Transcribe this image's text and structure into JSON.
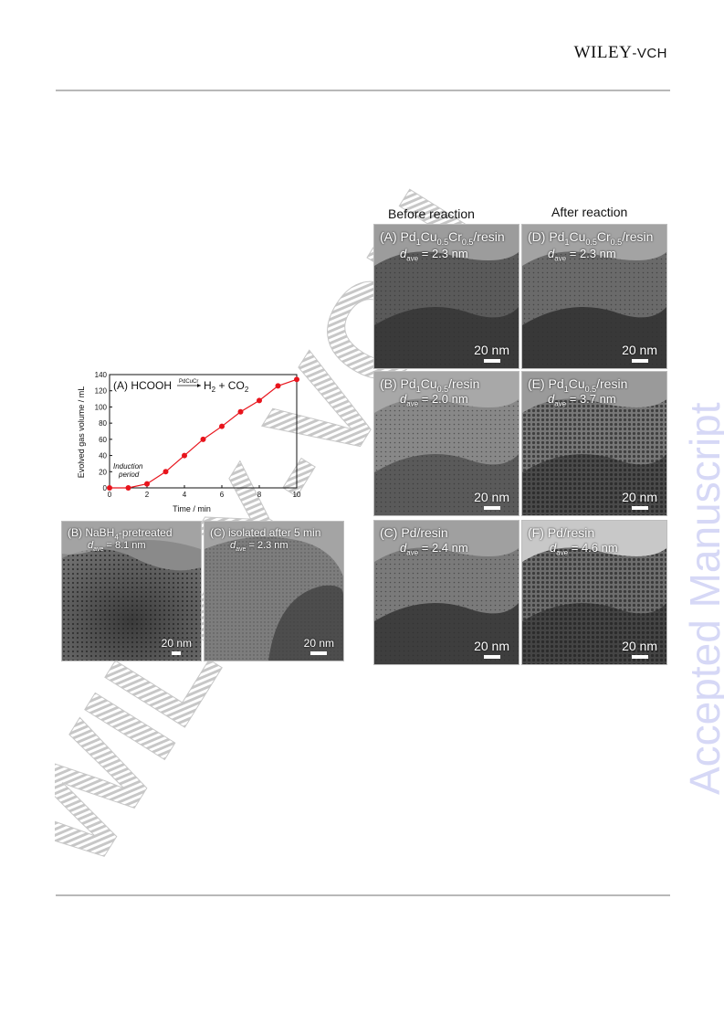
{
  "header": {
    "publisher_main": "WILEY",
    "publisher_suffix": "-VCH"
  },
  "watermark": {
    "side_text": "Accepted Manuscript",
    "diag_text": "WILEY-VCH",
    "color": "#d6d8f6"
  },
  "figure_left": {
    "chart_data": {
      "type": "line",
      "title": "(A) HCOOH",
      "reaction_catalyst": "PdCuCr",
      "reaction_products": [
        "H",
        "2",
        " + CO",
        "2"
      ],
      "xlabel": "Time / min",
      "ylabel": "Evolved gas volume / mL",
      "xlim": [
        0,
        10
      ],
      "ylim": [
        0,
        140
      ],
      "xticks": [
        0,
        2,
        4,
        6,
        8,
        10
      ],
      "yticks": [
        0,
        20,
        40,
        60,
        80,
        100,
        120,
        140
      ],
      "annotation_line1": "Induction",
      "annotation_line2": "period",
      "series_color": "#e8141c",
      "x": [
        0,
        1,
        2,
        3,
        4,
        5,
        6,
        7,
        8,
        9,
        10
      ],
      "y": [
        0,
        0,
        5,
        20,
        40,
        60,
        76,
        94,
        108,
        126,
        134
      ]
    },
    "panel_b": {
      "label_pre": "(B) NaBH",
      "label_sub": "4",
      "label_post": "-pretreated",
      "d_sym": "d",
      "d_sub": "ave",
      "d_val": " = 8.1 nm",
      "scale": "20 nm"
    },
    "panel_c": {
      "label": "(C) isolated  after  5 min",
      "d_sym": "d",
      "d_sub": "ave",
      "d_val": " = 2.3 nm",
      "scale": "20 nm"
    }
  },
  "figure_right": {
    "col_before": "Before  reaction",
    "col_after": "After reaction",
    "panels": [
      {
        "l1": "(A) Pd",
        "s1": "1",
        "l2": "Cu",
        "s2": "0.5",
        "l3": "Cr",
        "s3": "0.5",
        "l4": "/resin",
        "d_sym": "d",
        "d_sub": "ave",
        "d_val": " = 2.3 nm",
        "scale": "20 nm"
      },
      {
        "l1": "(D) Pd",
        "s1": "1",
        "l2": "Cu",
        "s2": "0.5",
        "l3": "Cr",
        "s3": "0.5",
        "l4": "/resin",
        "d_sym": "d",
        "d_sub": "ave",
        "d_val": " = 2.3 nm",
        "scale": "20 nm"
      },
      {
        "l1": "(B) Pd",
        "s1": "1",
        "l2": "Cu",
        "s2": "0.5",
        "l3": "",
        "s3": "",
        "l4": "/resin",
        "d_sym": "d",
        "d_sub": "ave",
        "d_val": " = 2.0 nm",
        "scale": "20 nm"
      },
      {
        "l1": "(E) Pd",
        "s1": "1",
        "l2": "Cu",
        "s2": "0.5",
        "l3": "",
        "s3": "",
        "l4": "/resin",
        "d_sym": "d",
        "d_sub": "ave",
        "d_val": " = 3.7 nm",
        "scale": "20 nm"
      },
      {
        "l1": "(C) Pd/resin",
        "s1": "",
        "l2": "",
        "s2": "",
        "l3": "",
        "s3": "",
        "l4": "",
        "d_sym": "d",
        "d_sub": "ave",
        "d_val": " = 2.4 nm",
        "scale": "20 nm"
      },
      {
        "l1": "(F) Pd/resin",
        "s1": "",
        "l2": "",
        "s2": "",
        "l3": "",
        "s3": "",
        "l4": "",
        "d_sym": "d",
        "d_sub": "ave",
        "d_val": " = 4.6 nm",
        "scale": "20 nm"
      }
    ]
  }
}
